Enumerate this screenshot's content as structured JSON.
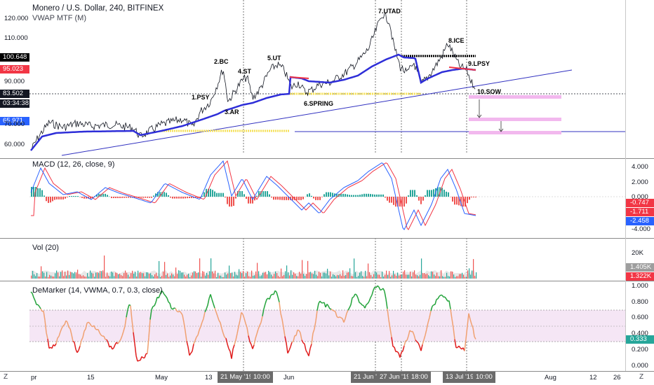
{
  "header": {
    "symbol_title": "Monero / U.S. Dollar, 240, BITFINEX",
    "vwap_label": "VWAP MTF (M)"
  },
  "price_axis": {
    "ticks": [
      "120.000",
      "110.000",
      "100.000",
      "90.000",
      "80.000",
      "70.000",
      "60.000"
    ],
    "badges": [
      {
        "label": "100.648",
        "color": "#000000"
      },
      {
        "label": "95.023",
        "color": "#f23645"
      },
      {
        "label": "83.502",
        "color": "#131722"
      },
      {
        "label": "03:34:38",
        "color": "#131722"
      },
      {
        "label": "65.971",
        "color": "#2962ff"
      }
    ]
  },
  "annotations": [
    "1.PSY",
    "2.BC",
    "3.AR",
    "4.ST",
    "5.UT",
    "6.SPRING",
    "7.UTAD",
    "8.ICE",
    "9.LPSY",
    "10.SOW"
  ],
  "macd": {
    "label": "MACD (12, 26, close, 9)",
    "ticks": [
      "4.000",
      "2.000",
      "0.000",
      "-4.000"
    ],
    "badges": [
      {
        "label": "-0.747",
        "color": "#f23645"
      },
      {
        "label": "-1.711",
        "color": "#f23645"
      },
      {
        "label": "-2.458",
        "color": "#2962ff"
      }
    ]
  },
  "volume": {
    "label": "Vol (20)",
    "ticks": [
      "20K"
    ],
    "badges": [
      {
        "label": "1.405K",
        "color": "#9e9e9e"
      },
      {
        "label": "1.322K",
        "color": "#f23645"
      }
    ]
  },
  "demarker": {
    "label": "DeMarker (14, VWMA, 0.7, 0.3, close)",
    "ticks": [
      "1.000",
      "0.800",
      "0.600",
      "0.400",
      "0.200",
      "0.000"
    ],
    "badges": [
      {
        "label": "0.333",
        "color": "#26a69a"
      }
    ]
  },
  "time_axis": {
    "ticks": [
      "pr",
      "15",
      "May",
      "13",
      "Jun",
      "Aug",
      "12",
      "26"
    ],
    "badges": [
      "21 May '19",
      "10:00",
      "21 Jun '19",
      "27 Jun '19",
      "18:00",
      "13 Jul '19",
      "10:00"
    ]
  },
  "axis_buttons": {
    "left": "Z",
    "right": "Z"
  },
  "colors": {
    "price_line": "#131722",
    "vwap": "#2e2ed8",
    "macd_line": "#2962ff",
    "signal_line": "#f23645",
    "hist_up": "#26a69a",
    "hist_down": "#ef5350",
    "demarker_up": "#22a33a",
    "demarker_down": "#e01b1b",
    "demarker_mid": "#f0a070",
    "sow_zone": "#f2b8ee"
  }
}
